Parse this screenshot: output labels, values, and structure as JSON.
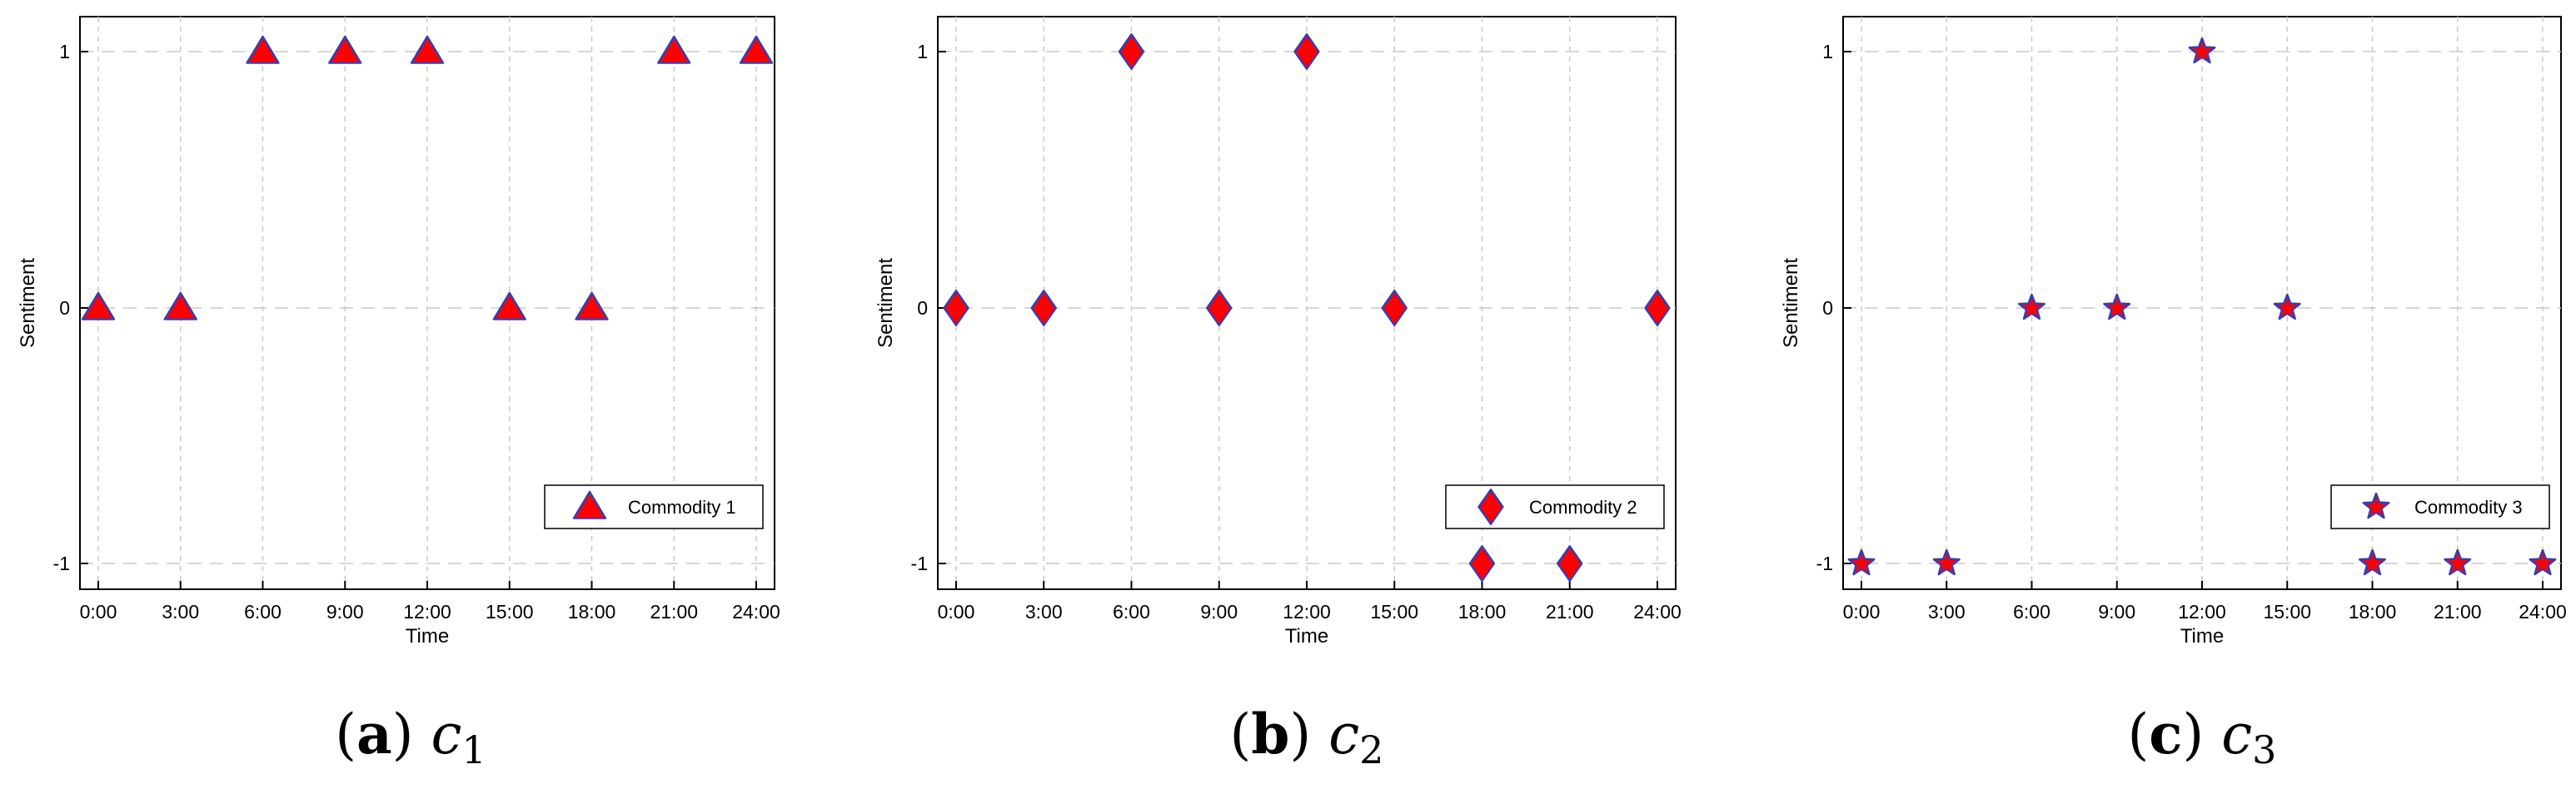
{
  "chart_data": [
    {
      "type": "scatter",
      "xlabel": "Time",
      "ylabel": "Sentiment",
      "x_ticks": [
        "0:00",
        "3:00",
        "6:00",
        "9:00",
        "12:00",
        "15:00",
        "18:00",
        "21:00",
        "24:00"
      ],
      "y_ticks": [
        "-1",
        "0",
        "1"
      ],
      "xlim": [
        0,
        24
      ],
      "ylim": [
        -1,
        1
      ],
      "legend_position": "bottom-right",
      "marker": "triangle",
      "marker_fill": "#ff0000",
      "marker_edge": "#3b3bb0",
      "series": [
        {
          "name": "Commodity 1",
          "x": [
            0,
            3,
            6,
            9,
            12,
            15,
            18,
            21,
            24
          ],
          "y": [
            0,
            0,
            1,
            1,
            1,
            0,
            0,
            1,
            1
          ]
        }
      ],
      "caption": {
        "letter": "a",
        "symbol": "c",
        "subscript": "1"
      }
    },
    {
      "type": "scatter",
      "xlabel": "Time",
      "ylabel": "Sentiment",
      "x_ticks": [
        "0:00",
        "3:00",
        "6:00",
        "9:00",
        "12:00",
        "15:00",
        "18:00",
        "21:00",
        "24:00"
      ],
      "y_ticks": [
        "-1",
        "0",
        "1"
      ],
      "xlim": [
        0,
        24
      ],
      "ylim": [
        -1,
        1
      ],
      "legend_position": "bottom-right",
      "marker": "diamond",
      "marker_fill": "#ff0000",
      "marker_edge": "#3b3bb0",
      "series": [
        {
          "name": "Commodity 2",
          "x": [
            0,
            3,
            6,
            9,
            12,
            15,
            18,
            21,
            24
          ],
          "y": [
            0,
            0,
            1,
            0,
            1,
            0,
            -1,
            -1,
            0
          ]
        }
      ],
      "caption": {
        "letter": "b",
        "symbol": "c",
        "subscript": "2"
      }
    },
    {
      "type": "scatter",
      "xlabel": "Time",
      "ylabel": "Sentiment",
      "x_ticks": [
        "0:00",
        "3:00",
        "6:00",
        "9:00",
        "12:00",
        "15:00",
        "18:00",
        "21:00",
        "24:00"
      ],
      "y_ticks": [
        "-1",
        "0",
        "1"
      ],
      "xlim": [
        0,
        24
      ],
      "ylim": [
        -1,
        1
      ],
      "legend_position": "bottom-right",
      "marker": "star",
      "marker_fill": "#ff0000",
      "marker_edge": "#3b3bb0",
      "series": [
        {
          "name": "Commodity 3",
          "x": [
            0,
            3,
            6,
            9,
            12,
            15,
            18,
            21,
            24
          ],
          "y": [
            -1,
            -1,
            0,
            0,
            1,
            0,
            -1,
            -1,
            -1
          ]
        }
      ],
      "caption": {
        "letter": "c",
        "symbol": "c",
        "subscript": "3"
      }
    }
  ]
}
